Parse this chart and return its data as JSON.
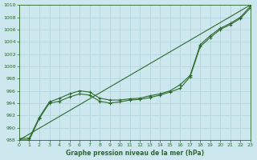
{
  "title": "Graphe pression niveau de la mer (hPa)",
  "bg_color": "#cce8ee",
  "grid_color": "#b8d8e0",
  "line_color": "#2d6a2d",
  "xlim": [
    0,
    23
  ],
  "ylim": [
    988,
    1010
  ],
  "yticks": [
    988,
    990,
    992,
    994,
    996,
    998,
    1000,
    1002,
    1004,
    1006,
    1008,
    1010
  ],
  "xticks": [
    0,
    1,
    2,
    3,
    4,
    5,
    6,
    7,
    8,
    9,
    10,
    11,
    12,
    13,
    14,
    15,
    16,
    17,
    18,
    19,
    20,
    21,
    22,
    23
  ],
  "smooth_line": {
    "x": [
      0,
      23
    ],
    "y": [
      988.0,
      1010.0
    ]
  },
  "series1": {
    "x": [
      0,
      1,
      2,
      3,
      4,
      5,
      6,
      7,
      8,
      9,
      10,
      11,
      12,
      13,
      14,
      15,
      16,
      17,
      18,
      19,
      20,
      21,
      22,
      23
    ],
    "y": [
      988.2,
      988.3,
      991.7,
      994.2,
      994.8,
      995.5,
      996.0,
      995.8,
      994.8,
      994.5,
      994.5,
      994.7,
      994.8,
      995.2,
      995.5,
      996.0,
      997.0,
      998.5,
      1003.5,
      1005.0,
      1006.2,
      1007.0,
      1008.0,
      1009.8
    ]
  },
  "series2": {
    "x": [
      0,
      1,
      2,
      3,
      4,
      5,
      6,
      7,
      8,
      9,
      10,
      11,
      12,
      13,
      14,
      15,
      16,
      17,
      18,
      19,
      20,
      21,
      22,
      23
    ],
    "y": [
      988.0,
      988.0,
      991.5,
      994.0,
      994.3,
      995.0,
      995.5,
      995.3,
      994.3,
      994.0,
      994.2,
      994.5,
      994.6,
      994.9,
      995.3,
      995.8,
      996.4,
      998.3,
      1003.2,
      1004.7,
      1006.0,
      1006.8,
      1007.8,
      1009.5
    ]
  }
}
